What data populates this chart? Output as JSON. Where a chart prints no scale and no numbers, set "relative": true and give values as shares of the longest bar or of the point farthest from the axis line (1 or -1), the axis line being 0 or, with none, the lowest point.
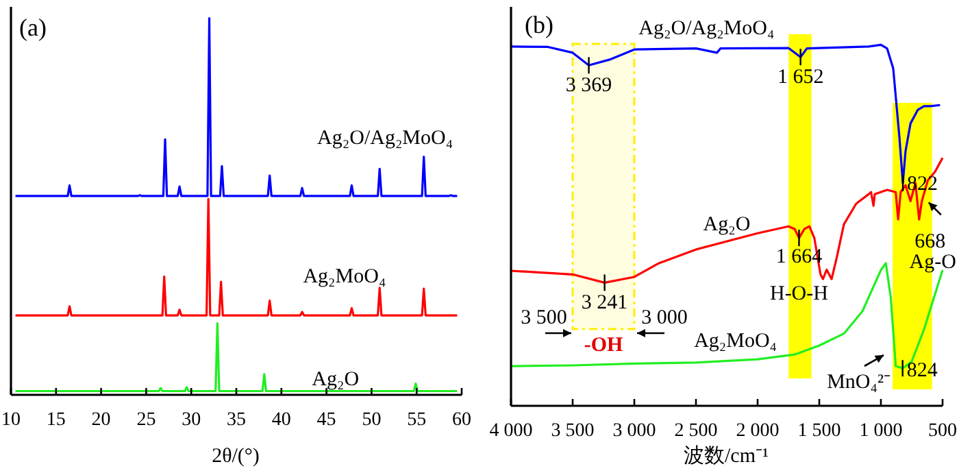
{
  "chart_data": [
    {
      "type": "line",
      "title": "(a)",
      "xlabel": "2θ/(°)",
      "relative": true,
      "tick_labels": "x",
      "xlim": [
        10,
        60
      ],
      "xticks": [
        10,
        15,
        20,
        25,
        30,
        35,
        40,
        45,
        50,
        55,
        60
      ],
      "series": [
        {
          "name": "Ag₂O/Ag₂MoO₄",
          "color": "#0000ff",
          "x": [
            10.5,
            16.3,
            16.5,
            16.7,
            24.1,
            24.3,
            24.5,
            26.9,
            27.1,
            27.3,
            28.5,
            28.7,
            28.9,
            31.8,
            32.0,
            32.2,
            33.2,
            33.4,
            33.6,
            38.5,
            38.7,
            38.9,
            42.1,
            42.3,
            42.5,
            47.6,
            47.8,
            48.0,
            50.7,
            50.9,
            51.1,
            55.6,
            55.8,
            56.0,
            58.6,
            58.8,
            59.0,
            59.5
          ],
          "values": [
            0.528,
            0.528,
            0.556,
            0.528,
            0.528,
            0.53,
            0.528,
            0.528,
            0.678,
            0.528,
            0.528,
            0.553,
            0.528,
            0.528,
            1.0,
            0.528,
            0.528,
            0.607,
            0.528,
            0.528,
            0.582,
            0.528,
            0.528,
            0.549,
            0.528,
            0.528,
            0.556,
            0.528,
            0.528,
            0.6,
            0.528,
            0.528,
            0.632,
            0.528,
            0.528,
            0.53,
            0.528,
            0.528
          ]
        },
        {
          "name": "Ag₂MoO₄",
          "color": "#ff0000",
          "x": [
            10.5,
            16.3,
            16.5,
            16.7,
            26.8,
            27.0,
            27.2,
            28.5,
            28.7,
            28.9,
            31.7,
            31.9,
            32.1,
            33.1,
            33.3,
            33.5,
            38.5,
            38.7,
            38.9,
            42.1,
            42.3,
            42.5,
            47.6,
            47.8,
            48.0,
            50.7,
            50.9,
            51.1,
            55.6,
            55.8,
            56.0,
            59.5
          ],
          "values": [
            0.211,
            0.211,
            0.235,
            0.211,
            0.211,
            0.314,
            0.211,
            0.211,
            0.226,
            0.211,
            0.211,
            0.52,
            0.211,
            0.211,
            0.3,
            0.211,
            0.211,
            0.25,
            0.211,
            0.211,
            0.22,
            0.211,
            0.211,
            0.23,
            0.211,
            0.211,
            0.284,
            0.211,
            0.211,
            0.282,
            0.211,
            0.211
          ]
        },
        {
          "name": "Ag₂O",
          "color": "#22ee22",
          "x": [
            10.5,
            26.4,
            26.6,
            26.8,
            29.3,
            29.5,
            29.7,
            32.7,
            32.9,
            33.1,
            37.9,
            38.1,
            38.3,
            54.7,
            54.9,
            55.1,
            59.5
          ],
          "values": [
            0.01,
            0.01,
            0.018,
            0.01,
            0.01,
            0.02,
            0.01,
            0.01,
            0.19,
            0.01,
            0.01,
            0.055,
            0.01,
            0.01,
            0.03,
            0.01,
            0.01
          ]
        }
      ]
    },
    {
      "type": "line",
      "title": "(b)",
      "xlabel": "波数/cm⁻¹",
      "relative": true,
      "tick_labels": "x",
      "xlim": [
        4000,
        500
      ],
      "xticks": [
        {
          "value": 4000,
          "label": "4 000"
        },
        {
          "value": 3500,
          "label": "3 500"
        },
        {
          "value": 3000,
          "label": "3 000"
        },
        {
          "value": 2500,
          "label": "2 500"
        },
        {
          "value": 2000,
          "label": "2 000"
        },
        {
          "value": 1500,
          "label": "1 500"
        },
        {
          "value": 1000,
          "label": "1 000"
        },
        500
      ],
      "bands": [
        {
          "axis": "x",
          "from": 1748,
          "to": 1563,
          "color": "#ffff00"
        },
        {
          "axis": "x",
          "from": 905,
          "to": 585,
          "color": "#ffff00"
        },
        {
          "axis": "x",
          "from": 3500,
          "to": 3000,
          "color": "#ffee00",
          "label": "-OH"
        }
      ],
      "series": [
        {
          "name": "Ag₂O/Ag₂MoO₄",
          "color": "#0000ff",
          "x": [
            4000,
            3700,
            3500,
            3369,
            3200,
            3000,
            2500,
            2330,
            2300,
            1750,
            1652,
            1600,
            1100,
            1000,
            950,
            900,
            880,
            850,
            822,
            800,
            760,
            700,
            650,
            600,
            520
          ],
          "values": [
            0.995,
            0.994,
            0.978,
            0.943,
            0.959,
            0.987,
            0.99,
            0.978,
            0.99,
            0.991,
            0.966,
            0.99,
            0.995,
            1.0,
            0.99,
            0.934,
            0.858,
            0.744,
            0.617,
            0.706,
            0.782,
            0.82,
            0.83,
            0.83,
            0.833
          ]
        },
        {
          "name": "Ag₂O",
          "color": "#ff0000",
          "x": [
            4000,
            3500,
            3241,
            3000,
            2800,
            2500,
            2000,
            1750,
            1700,
            1664,
            1620,
            1580,
            1540,
            1490,
            1470,
            1440,
            1400,
            1360,
            1300,
            1200,
            1100,
            1080,
            1060,
            1050,
            950,
            880,
            860,
            840,
            800,
            760,
            720,
            690,
            668,
            620,
            560,
            500
          ],
          "values": [
            0.374,
            0.364,
            0.341,
            0.357,
            0.395,
            0.433,
            0.478,
            0.497,
            0.49,
            0.465,
            0.49,
            0.497,
            0.465,
            0.364,
            0.351,
            0.377,
            0.351,
            0.408,
            0.503,
            0.56,
            0.586,
            0.592,
            0.554,
            0.586,
            0.598,
            0.592,
            0.516,
            0.592,
            0.611,
            0.567,
            0.617,
            0.516,
            0.567,
            0.624,
            0.649,
            0.687
          ]
        },
        {
          "name": "Ag₂MoO₄",
          "color": "#22ee22",
          "x": [
            4000,
            3500,
            3000,
            2500,
            2000,
            1700,
            1500,
            1300,
            1150,
            1050,
            1000,
            960,
            920,
            880,
            824,
            750,
            650,
            500
          ],
          "values": [
            0.11,
            0.112,
            0.117,
            0.12,
            0.129,
            0.142,
            0.167,
            0.2,
            0.262,
            0.338,
            0.376,
            0.395,
            0.3,
            0.11,
            0.104,
            0.123,
            0.212,
            0.376
          ]
        }
      ],
      "annotations": [
        {
          "text": "3 369",
          "x": 3369,
          "y": 0.943
        },
        {
          "text": "1 652",
          "x": 1652,
          "y": 0.966
        },
        {
          "text": "822",
          "x": 822,
          "y": 0.617
        },
        {
          "text": "3 241",
          "x": 3241,
          "y": 0.341
        },
        {
          "text": "1 664",
          "x": 1664,
          "y": 0.465
        },
        {
          "text": "H-O-H",
          "x": 1664,
          "y": 0.465
        },
        {
          "text": "668",
          "x": 668,
          "y": 0.567
        },
        {
          "text": "Ag-O",
          "x": 668,
          "y": 0.567
        },
        {
          "text": "824",
          "x": 824,
          "y": 0.104
        },
        "MnO₄²⁻",
        "3 500",
        "3 000"
      ]
    }
  ]
}
